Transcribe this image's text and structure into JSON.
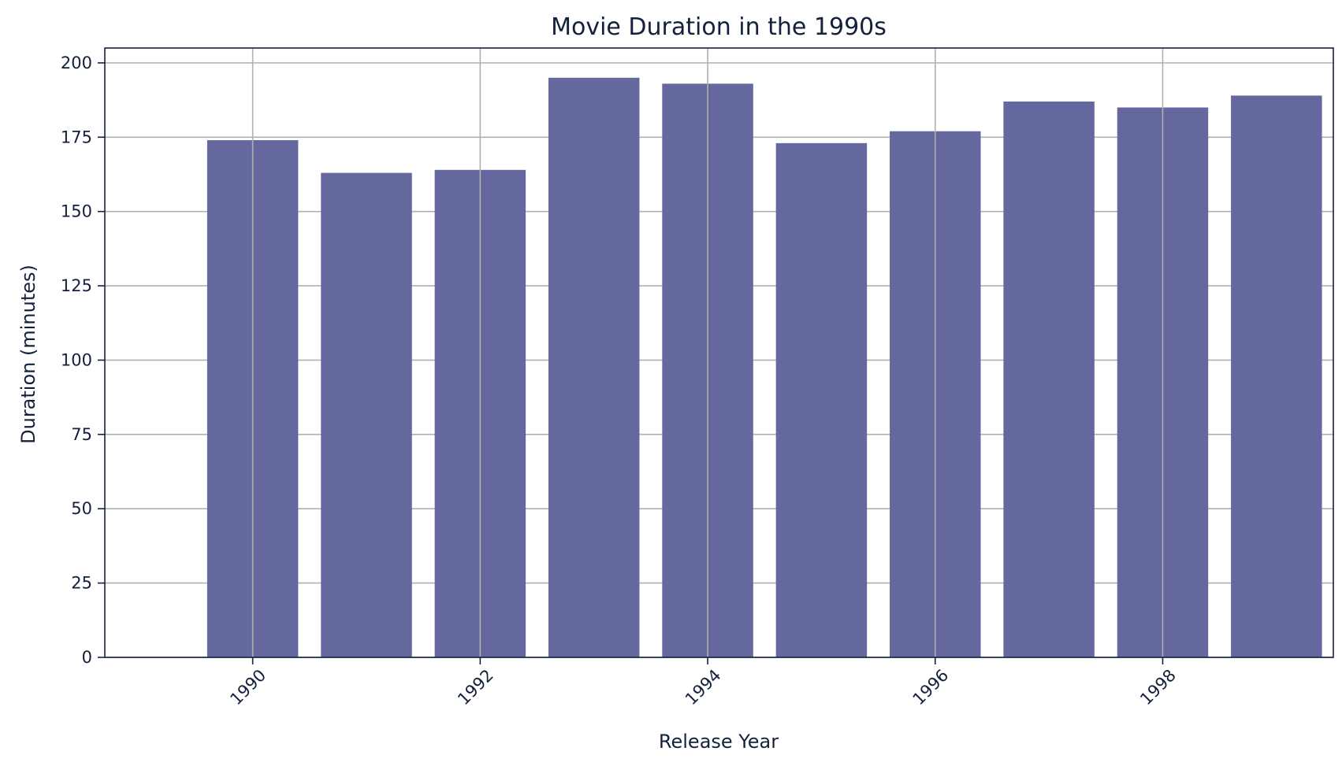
{
  "chart_data": {
    "type": "bar",
    "title": "Movie Duration in the 1990s",
    "xlabel": "Release Year",
    "ylabel": "Duration (minutes)",
    "x": [
      1990,
      1991,
      1992,
      1993,
      1994,
      1995,
      1996,
      1997,
      1998,
      1999
    ],
    "values": [
      174,
      163,
      164,
      195,
      193,
      173,
      177,
      187,
      185,
      189
    ],
    "xlim": [
      1988.7,
      1999.5
    ],
    "ylim": [
      0,
      205
    ],
    "xticks": [
      1990,
      1992,
      1994,
      1996,
      1998
    ],
    "xtick_labels": [
      "1990",
      "1992",
      "1994",
      "1996",
      "1998"
    ],
    "yticks": [
      0,
      25,
      50,
      75,
      100,
      125,
      150,
      175,
      200
    ],
    "ytick_labels": [
      "0",
      "25",
      "50",
      "75",
      "100",
      "125",
      "150",
      "175",
      "200"
    ],
    "grid": true,
    "bar_color": "#65689f",
    "grid_color": "#b0b0b0",
    "axis_color": "#13213d"
  }
}
